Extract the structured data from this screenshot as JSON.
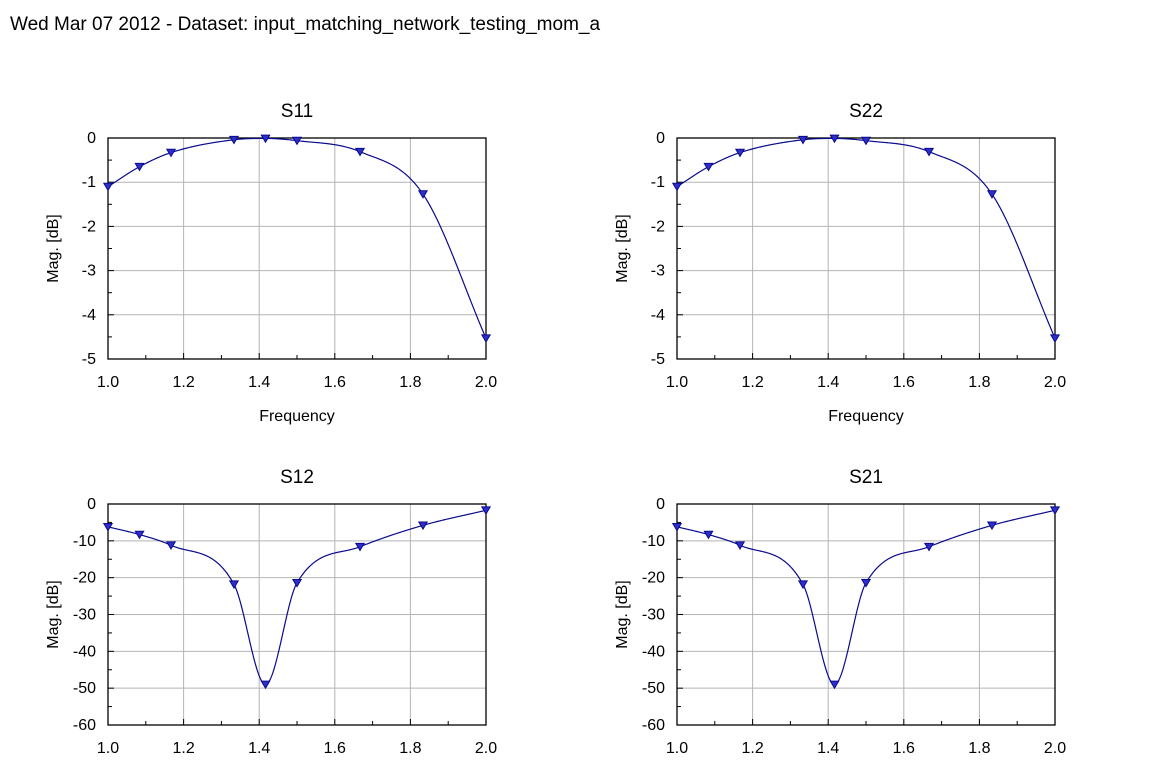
{
  "header": {
    "date": "Wed Mar 07 2012",
    "separator": " - Dataset: ",
    "dataset": "input_matching_network_testing_mom_a"
  },
  "colors": {
    "trace": "#0a0a8c",
    "marker_fill": "#2e2ecc",
    "grid": "#b4b4b4",
    "axis": "#000000"
  },
  "chart_data": [
    {
      "type": "line",
      "title": "S11",
      "xlabel": "Frequency",
      "ylabel": "Mag. [dB]",
      "xlim": [
        1.0,
        2.0
      ],
      "ylim": [
        -5,
        0
      ],
      "x_ticks": [
        "1.0",
        "1.2",
        "1.4",
        "1.6",
        "1.8",
        "2.0"
      ],
      "y_ticks": [
        "0",
        "-1",
        "-2",
        "-3",
        "-4",
        "-5"
      ],
      "grid": true,
      "markers": "triangle-down",
      "x": [
        1.0,
        1.0833,
        1.1667,
        1.3333,
        1.4167,
        1.5,
        1.6667,
        1.8333,
        2.0
      ],
      "y": [
        -1.1,
        -0.65,
        -0.33,
        -0.04,
        -0.01,
        -0.06,
        -0.31,
        -1.27,
        -4.53
      ]
    },
    {
      "type": "line",
      "title": "S22",
      "xlabel": "Frequency",
      "ylabel": "Mag. [dB]",
      "xlim": [
        1.0,
        2.0
      ],
      "ylim": [
        -5,
        0
      ],
      "x_ticks": [
        "1.0",
        "1.2",
        "1.4",
        "1.6",
        "1.8",
        "2.0"
      ],
      "y_ticks": [
        "0",
        "-1",
        "-2",
        "-3",
        "-4",
        "-5"
      ],
      "grid": true,
      "markers": "triangle-down",
      "x": [
        1.0,
        1.0833,
        1.1667,
        1.3333,
        1.4167,
        1.5,
        1.6667,
        1.8333,
        2.0
      ],
      "y": [
        -1.1,
        -0.65,
        -0.33,
        -0.04,
        -0.01,
        -0.06,
        -0.31,
        -1.27,
        -4.53
      ]
    },
    {
      "type": "line",
      "title": "S12",
      "xlabel": "",
      "ylabel": "Mag. [dB]",
      "xlim": [
        1.0,
        2.0
      ],
      "ylim": [
        -60,
        0
      ],
      "x_ticks": [
        "1.0",
        "1.2",
        "1.4",
        "1.6",
        "1.8",
        "2.0"
      ],
      "y_ticks": [
        "0",
        "-10",
        "-20",
        "-30",
        "-40",
        "-50",
        "-60"
      ],
      "grid": true,
      "markers": "triangle-down",
      "x": [
        1.0,
        1.0833,
        1.1667,
        1.3333,
        1.4167,
        1.5,
        1.6667,
        1.8333,
        2.0
      ],
      "y": [
        -6.2,
        -8.3,
        -11.2,
        -21.8,
        -49.0,
        -21.4,
        -11.6,
        -5.8,
        -1.7
      ]
    },
    {
      "type": "line",
      "title": "S21",
      "xlabel": "",
      "ylabel": "Mag. [dB]",
      "xlim": [
        1.0,
        2.0
      ],
      "ylim": [
        -60,
        0
      ],
      "x_ticks": [
        "1.0",
        "1.2",
        "1.4",
        "1.6",
        "1.8",
        "2.0"
      ],
      "y_ticks": [
        "0",
        "-10",
        "-20",
        "-30",
        "-40",
        "-50",
        "-60"
      ],
      "grid": true,
      "markers": "triangle-down",
      "x": [
        1.0,
        1.0833,
        1.1667,
        1.3333,
        1.4167,
        1.5,
        1.6667,
        1.8333,
        2.0
      ],
      "y": [
        -6.2,
        -8.3,
        -11.2,
        -21.8,
        -49.0,
        -21.4,
        -11.6,
        -5.8,
        -1.7
      ]
    }
  ]
}
